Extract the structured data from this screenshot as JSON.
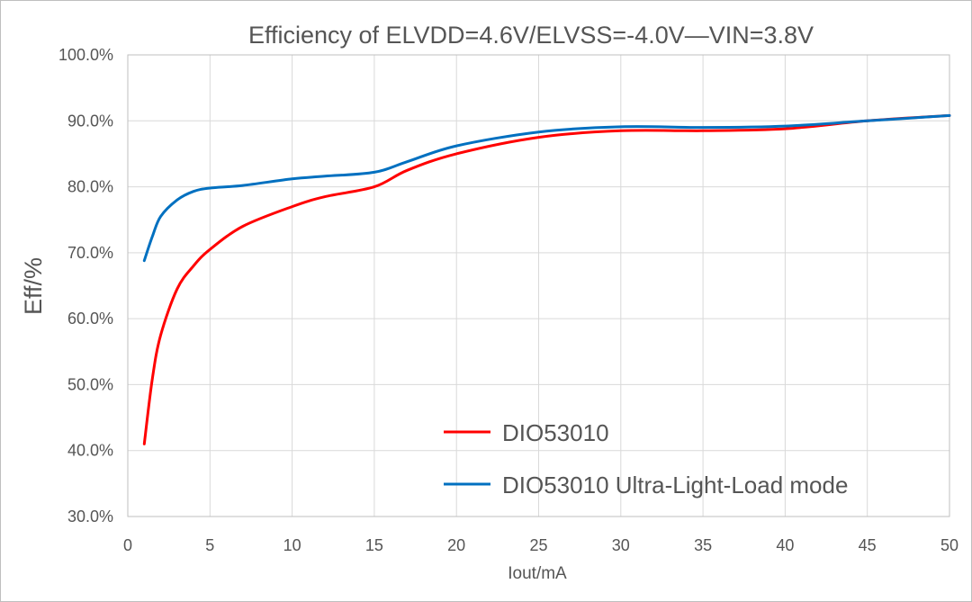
{
  "chart_data": {
    "type": "line",
    "title": "Efficiency of  ELVDD=4.6V/ELVSS=-4.0V—VIN=3.8V",
    "xlabel": "Iout/mA",
    "ylabel": "Eff/%",
    "xlim": [
      0,
      50
    ],
    "ylim": [
      30,
      100
    ],
    "x_ticks": [
      0,
      5,
      10,
      15,
      20,
      25,
      30,
      35,
      40,
      45,
      50
    ],
    "x_tick_labels": [
      "0",
      "5",
      "10",
      "15",
      "20",
      "25",
      "30",
      "35",
      "40",
      "45",
      "50"
    ],
    "y_ticks": [
      30,
      40,
      50,
      60,
      70,
      80,
      90,
      100
    ],
    "y_tick_labels": [
      "30.0%",
      "40.0%",
      "50.0%",
      "60.0%",
      "70.0%",
      "80.0%",
      "90.0%",
      "100.0%"
    ],
    "grid": true,
    "legend_position": "bottom-right",
    "series": [
      {
        "name": "DIO53010",
        "color": "#ff0000",
        "x": [
          1,
          1.5,
          2,
          3,
          4,
          5,
          7,
          10,
          12,
          15,
          17,
          20,
          25,
          30,
          35,
          40,
          45,
          50
        ],
        "y": [
          41,
          51,
          57.5,
          64.5,
          68,
          70.5,
          74,
          77,
          78.5,
          80,
          82.5,
          85,
          87.5,
          88.5,
          88.5,
          88.8,
          90,
          90.8
        ]
      },
      {
        "name": "DIO53010 Ultra-Light-Load mode",
        "color": "#0070c0",
        "x": [
          1,
          1.5,
          2,
          3,
          4,
          5,
          7,
          10,
          12,
          15,
          17,
          20,
          25,
          30,
          35,
          40,
          45,
          50
        ],
        "y": [
          68.8,
          72.5,
          75.5,
          78,
          79.3,
          79.8,
          80.2,
          81.2,
          81.6,
          82.2,
          83.8,
          86.2,
          88.3,
          89.1,
          89,
          89.2,
          90,
          90.8
        ]
      }
    ]
  }
}
